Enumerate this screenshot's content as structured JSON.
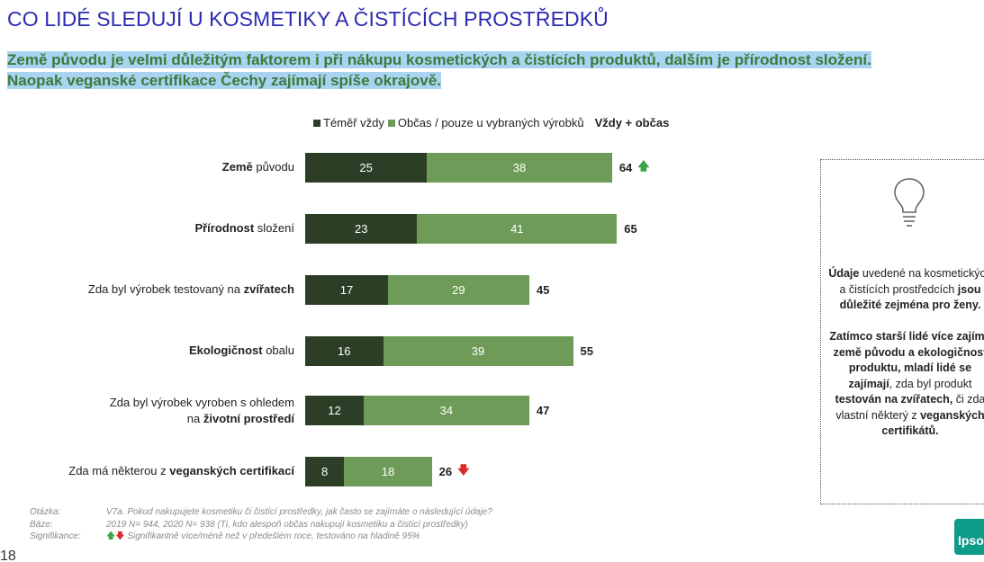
{
  "title": "CO LIDÉ SLEDUJÍ U KOSMETIKY A ČISTÍCÍCH PROSTŘEDKŮ",
  "subtitle_line1": "Země původu je velmi důležitým faktorem i při nákupu kosmetických a čistících produktů, dalším je přírodnost složení.",
  "subtitle_line2": "Naopak veganské certifikace Čechy zajímají spíše okrajově.",
  "colors": {
    "dark": "#2c3f26",
    "light": "#6e9c58",
    "up": "#3aa345",
    "down": "#d92b2b",
    "title": "#2b2bb0"
  },
  "chart_data": {
    "type": "bar",
    "orientation": "horizontal",
    "stacked": true,
    "legend": [
      "Téměř vždy",
      "Občas / pouze u vybraných výrobků"
    ],
    "legend_total": "Vždy + občas",
    "categories": [
      "Země původu",
      "Přírodnost složení",
      "Zda byl výrobek testovaný na zvířatech",
      "Ekologičnost obalu",
      "Zda byl výrobek vyroben s ohledem na životní prostředí",
      "Zda má některou z veganských certifikací"
    ],
    "series": [
      {
        "name": "Téměř vždy",
        "values": [
          25,
          23,
          17,
          16,
          12,
          8
        ]
      },
      {
        "name": "Občas / pouze u vybraných výrobků",
        "values": [
          38,
          41,
          29,
          39,
          34,
          18
        ]
      }
    ],
    "totals": [
      64,
      65,
      45,
      55,
      47,
      26
    ],
    "significance": [
      "up",
      "",
      "",
      "",
      "",
      "down"
    ]
  },
  "row_labels": [
    {
      "pre": "",
      "bold": "Země",
      "post": " původu"
    },
    {
      "pre": "",
      "bold": "Přírodnost",
      "post": " složení"
    },
    {
      "pre": "Zda byl výrobek testovaný na ",
      "bold": "zvířatech",
      "post": ""
    },
    {
      "pre": "",
      "bold": "Ekologičnost",
      "post": " obalu"
    },
    {
      "pre": "Zda byl výrobek vyroben s ohledem",
      "pre2": "na ",
      "bold": "životní prostředí",
      "post": ""
    },
    {
      "pre": "Zda má některou z ",
      "bold": "veganských certifikací",
      "post": ""
    }
  ],
  "infobox": {
    "p1_b1": "Údaje",
    "p1_t1": " uvedené na kosmetických a čistících prostředcích ",
    "p1_b2": "jsou důležité zejména pro ženy.",
    "p2_b1": "Zatímco starší lidé více zajímá země původu a ekologičnost produktu, mladí lidé se zajímají",
    "p2_t1": ", zda byl produkt ",
    "p2_b2": "testován na zvířatech,",
    "p2_t2": " či zda vlastní některý z ",
    "p2_b3": "veganských certifikátů."
  },
  "notes": {
    "q_label": "Otázka:",
    "q_text": "V7a. Pokud nakupujete kosmetiku či čistící prostředky, jak často se zajímáte o následující údaje?",
    "b_label": "Báze:",
    "b_text": "2019 N= 944, 2020 N= 938 (Ti, kdo alespoň občas nakupují kosmetiku a čistící prostředky)",
    "s_label": "Signifikance:",
    "s_text": "Signifikantně více/méně než v předešlém roce, testováno na hladině 95%"
  },
  "page_number": "18",
  "logo_text": "Ipso"
}
